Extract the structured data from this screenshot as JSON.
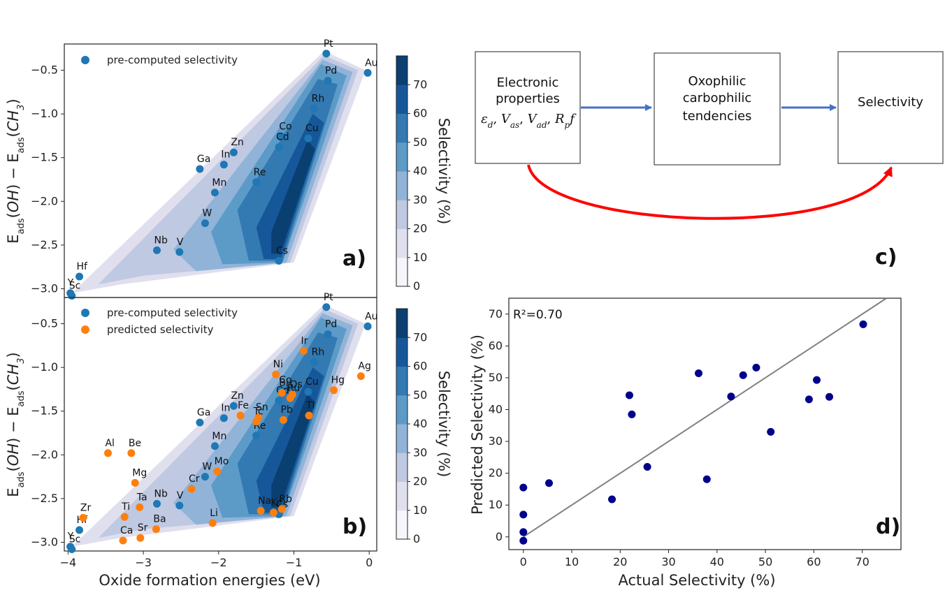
{
  "chart_data": [
    {
      "type": "scatter",
      "panel_label": "a)",
      "ylabel_html": "E<tspan baseline-shift='sub' font-size='13'>ads</tspan>(<tspan font-style='italic'>OH</tspan>) − E<tspan baseline-shift='sub' font-size='13'>ads</tspan>(<tspan font-style='italic'>CH</tspan><tspan baseline-shift='sub' font-size='13' font-style='italic'>3</tspan>)",
      "xlim": [
        -4.05,
        0.1
      ],
      "ylim": [
        -3.1,
        -0.2
      ],
      "yticks": [
        -3.0,
        -2.5,
        -2.0,
        -1.5,
        -1.0,
        -0.5
      ],
      "ytick_labels": [
        "−3.0",
        "−2.5",
        "−2.0",
        "−1.5",
        "−1.0",
        "−0.5"
      ],
      "legend": [
        "pre-computed selectivity"
      ],
      "series": [
        {
          "name": "pre-computed selectivity",
          "color": "#1f77b4",
          "points": [
            {
              "label": "Pt",
              "x": -0.57,
              "y": -0.31
            },
            {
              "label": "Au",
              "x": -0.02,
              "y": -0.53
            },
            {
              "label": "Pd",
              "x": -0.55,
              "y": -0.62
            },
            {
              "label": "Rh",
              "x": -0.73,
              "y": -0.94
            },
            {
              "label": "Co",
              "x": -1.16,
              "y": -1.26
            },
            {
              "label": "Cu",
              "x": -0.81,
              "y": -1.28
            },
            {
              "label": "Cd",
              "x": -1.2,
              "y": -1.38
            },
            {
              "label": "Zn",
              "x": -1.8,
              "y": -1.44
            },
            {
              "label": "In",
              "x": -1.93,
              "y": -1.58
            },
            {
              "label": "Ga",
              "x": -2.25,
              "y": -1.63
            },
            {
              "label": "Re",
              "x": -1.5,
              "y": -1.78
            },
            {
              "label": "Mn",
              "x": -2.05,
              "y": -1.9
            },
            {
              "label": "W",
              "x": -2.18,
              "y": -2.25
            },
            {
              "label": "Nb",
              "x": -2.82,
              "y": -2.56
            },
            {
              "label": "V",
              "x": -2.52,
              "y": -2.58
            },
            {
              "label": "Cs",
              "x": -1.2,
              "y": -2.68
            },
            {
              "label": "Hf",
              "x": -3.85,
              "y": -2.86
            },
            {
              "label": "Y",
              "x": -3.97,
              "y": -3.05
            },
            {
              "label": "Sc",
              "x": -3.95,
              "y": -3.08
            }
          ]
        }
      ]
    },
    {
      "type": "scatter",
      "panel_label": "b)",
      "xlabel": "Oxide formation energies (eV)",
      "ylabel_html": "E<tspan baseline-shift='sub' font-size='13'>ads</tspan>(<tspan font-style='italic'>OH</tspan>) − E<tspan baseline-shift='sub' font-size='13'>ads</tspan>(<tspan font-style='italic'>CH</tspan><tspan baseline-shift='sub' font-size='13' font-style='italic'>3</tspan>)",
      "xlim": [
        -4.05,
        0.1
      ],
      "ylim": [
        -3.1,
        -0.2
      ],
      "xticks": [
        -4,
        -3,
        -2,
        -1,
        0
      ],
      "xtick_labels": [
        "−4",
        "−3",
        "−2",
        "−1",
        "0"
      ],
      "yticks": [
        -3.0,
        -2.5,
        -2.0,
        -1.5,
        -1.0,
        -0.5
      ],
      "ytick_labels": [
        "−3.0",
        "−2.5",
        "−2.0",
        "−1.5",
        "−1.0",
        "−0.5"
      ],
      "legend": [
        "pre-computed selectivity",
        "predicted selectivity"
      ],
      "series": [
        {
          "name": "pre-computed selectivity",
          "color": "#1f77b4",
          "points": [
            {
              "label": "Pt",
              "x": -0.57,
              "y": -0.31
            },
            {
              "label": "Au",
              "x": -0.02,
              "y": -0.53
            },
            {
              "label": "Pd",
              "x": -0.55,
              "y": -0.62
            },
            {
              "label": "Rh",
              "x": -0.73,
              "y": -0.94
            },
            {
              "label": "Co",
              "x": -1.16,
              "y": -1.26
            },
            {
              "label": "Cu",
              "x": -0.81,
              "y": -1.28
            },
            {
              "label": "Cd",
              "x": -1.2,
              "y": -1.38
            },
            {
              "label": "Zn",
              "x": -1.8,
              "y": -1.44
            },
            {
              "label": "In",
              "x": -1.93,
              "y": -1.58
            },
            {
              "label": "Ga",
              "x": -2.25,
              "y": -1.63
            },
            {
              "label": "Re",
              "x": -1.5,
              "y": -1.78
            },
            {
              "label": "Mn",
              "x": -2.05,
              "y": -1.9
            },
            {
              "label": "W",
              "x": -2.18,
              "y": -2.25
            },
            {
              "label": "Nb",
              "x": -2.82,
              "y": -2.56
            },
            {
              "label": "V",
              "x": -2.52,
              "y": -2.58
            },
            {
              "label": "Cs",
              "x": -1.2,
              "y": -2.68
            },
            {
              "label": "Hf",
              "x": -3.85,
              "y": -2.86
            },
            {
              "label": "Y",
              "x": -3.97,
              "y": -3.05
            },
            {
              "label": "Sc",
              "x": -3.95,
              "y": -3.08
            }
          ]
        },
        {
          "name": "predicted selectivity",
          "color": "#ff7f0e",
          "points": [
            {
              "label": "Ir",
              "x": -0.87,
              "y": -0.81
            },
            {
              "label": "Ag",
              "x": -0.11,
              "y": -1.1
            },
            {
              "label": "Ni",
              "x": -1.24,
              "y": -1.08
            },
            {
              "label": "Hg",
              "x": -0.47,
              "y": -1.26
            },
            {
              "label": "Os",
              "x": -1.02,
              "y": -1.31
            },
            {
              "label": "Bi",
              "x": -1.16,
              "y": -1.29
            },
            {
              "label": "Ru",
              "x": -1.05,
              "y": -1.35
            },
            {
              "label": "Tl",
              "x": -0.8,
              "y": -1.55
            },
            {
              "label": "Fe",
              "x": -1.71,
              "y": -1.55
            },
            {
              "label": "Sn",
              "x": -1.47,
              "y": -1.57
            },
            {
              "label": "Tc",
              "x": -1.5,
              "y": -1.62
            },
            {
              "label": "Pb",
              "x": -1.14,
              "y": -1.6
            },
            {
              "label": "Al",
              "x": -3.47,
              "y": -1.98
            },
            {
              "label": "Be",
              "x": -3.16,
              "y": -1.98
            },
            {
              "label": "Mo",
              "x": -2.02,
              "y": -2.19
            },
            {
              "label": "Mg",
              "x": -3.11,
              "y": -2.32
            },
            {
              "label": "Cr",
              "x": -2.36,
              "y": -2.39
            },
            {
              "label": "Ta",
              "x": -3.05,
              "y": -2.6
            },
            {
              "label": "Na",
              "x": -1.44,
              "y": -2.64
            },
            {
              "label": "Rb",
              "x": -1.16,
              "y": -2.62
            },
            {
              "label": "K",
              "x": -1.27,
              "y": -2.66
            },
            {
              "label": "Zr",
              "x": -3.8,
              "y": -2.72
            },
            {
              "label": "Ti",
              "x": -3.25,
              "y": -2.71
            },
            {
              "label": "Li",
              "x": -2.08,
              "y": -2.78
            },
            {
              "label": "Ba",
              "x": -2.83,
              "y": -2.85
            },
            {
              "label": "Sr",
              "x": -3.04,
              "y": -2.95
            },
            {
              "label": "Ca",
              "x": -3.27,
              "y": -2.98
            }
          ]
        }
      ]
    },
    {
      "type": "scatter",
      "panel_label": "d)",
      "annotation": "R²=0.70",
      "xlabel": "Actual Selectivity (%)",
      "ylabel": "Predicted Selectivity (%)",
      "xlim": [
        -3,
        78
      ],
      "ylim": [
        -4,
        75
      ],
      "xticks": [
        0,
        10,
        20,
        30,
        40,
        50,
        60,
        70
      ],
      "yticks": [
        0,
        10,
        20,
        30,
        40,
        50,
        60,
        70
      ],
      "fit_line": {
        "x": [
          0,
          75
        ],
        "y": [
          0,
          75
        ],
        "color": "#808080"
      },
      "series": [
        {
          "color": "#00008b",
          "x": [
            0,
            0,
            0,
            0,
            5.3,
            18.3,
            21.9,
            22.4,
            25.6,
            36.2,
            37.9,
            42.9,
            45.4,
            48.1,
            51.1,
            59.0,
            60.6,
            63.2,
            70.2
          ],
          "y": [
            -1.2,
            1.5,
            7.0,
            15.5,
            16.9,
            11.8,
            44.5,
            38.5,
            22.0,
            51.4,
            18.1,
            44.1,
            50.8,
            53.2,
            33.0,
            43.2,
            49.3,
            44.0,
            66.8
          ]
        }
      ]
    }
  ],
  "colorbar": {
    "label": "Selectivity (%)",
    "ticks": [
      0,
      10,
      20,
      30,
      40,
      50,
      60,
      70
    ],
    "colors": [
      "#f6f5fb",
      "#e0dfee",
      "#bfc9e2",
      "#91b3d8",
      "#5c9ac8",
      "#3379b2",
      "#16579a",
      "#0a3f72"
    ]
  },
  "flow": {
    "box1_lines": [
      "Electronic",
      "properties"
    ],
    "box1_formula_html": "<tspan font-style='italic'>ε</tspan><tspan baseline-shift='sub' font-size='12' font-style='italic'>d</tspan>, <tspan font-style='italic'>V</tspan><tspan baseline-shift='sub' font-size='12' font-style='italic'>as</tspan>, <tspan font-style='italic'>V</tspan><tspan baseline-shift='sub' font-size='12' font-style='italic'>ad</tspan>, <tspan font-style='italic'>R</tspan><tspan baseline-shift='sub' font-size='12' font-style='italic'>p</tspan><tspan font-style='italic'>f</tspan>",
    "box2_lines": [
      "Oxophilic",
      "carbophilic",
      "tendencies"
    ],
    "box3_lines": [
      "Selectivity"
    ],
    "panel_label": "c)",
    "arrow_color": "#4472c4",
    "curve_color": "#ff0000"
  }
}
